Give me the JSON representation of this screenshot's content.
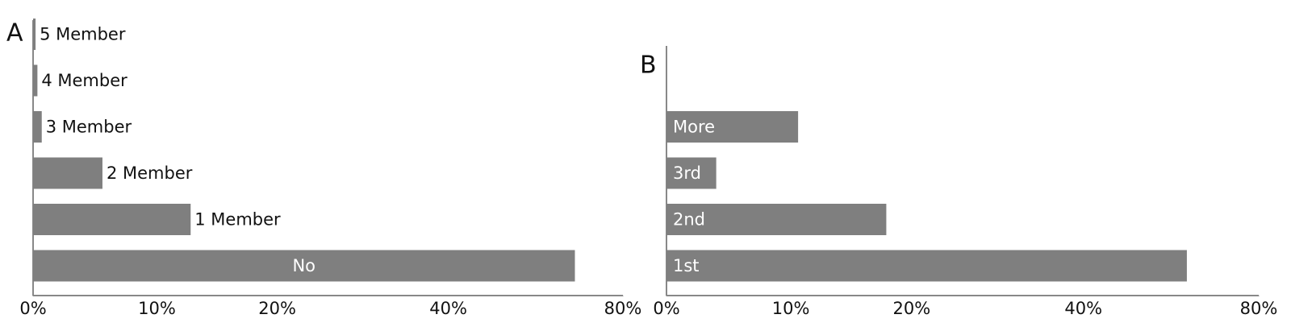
{
  "chart_data": [
    {
      "type": "bar",
      "orientation": "horizontal",
      "panel_label": "A",
      "categories": [
        "5 Member",
        "4 Member",
        "3 Member",
        "2 Member",
        "1 Member",
        "No"
      ],
      "values": [
        0.2,
        0.35,
        0.7,
        5.6,
        12.8,
        69
      ],
      "color": "#7f7f7f",
      "label_position": "outside",
      "xlim": [
        0,
        80
      ],
      "xticks": [
        {
          "value": 0,
          "label": "0%"
        },
        {
          "value": 10,
          "label": "10%"
        },
        {
          "value": 20,
          "label": "20%"
        },
        {
          "value": 40,
          "label": "40%"
        },
        {
          "value": 80,
          "label": "80%"
        }
      ]
    },
    {
      "type": "bar",
      "orientation": "horizontal",
      "panel_label": "B",
      "categories": [
        "More",
        "3rd",
        "2nd",
        "1st"
      ],
      "values": [
        10.6,
        4.0,
        17.9,
        63.6
      ],
      "color": "#7f7f7f",
      "label_position": "inside",
      "xlim": [
        0,
        80
      ],
      "xticks": [
        {
          "value": 0,
          "label": "0%"
        },
        {
          "value": 10,
          "label": "10%"
        },
        {
          "value": 20,
          "label": "20%"
        },
        {
          "value": 40,
          "label": "40%"
        },
        {
          "value": 80,
          "label": "80%"
        }
      ]
    }
  ]
}
